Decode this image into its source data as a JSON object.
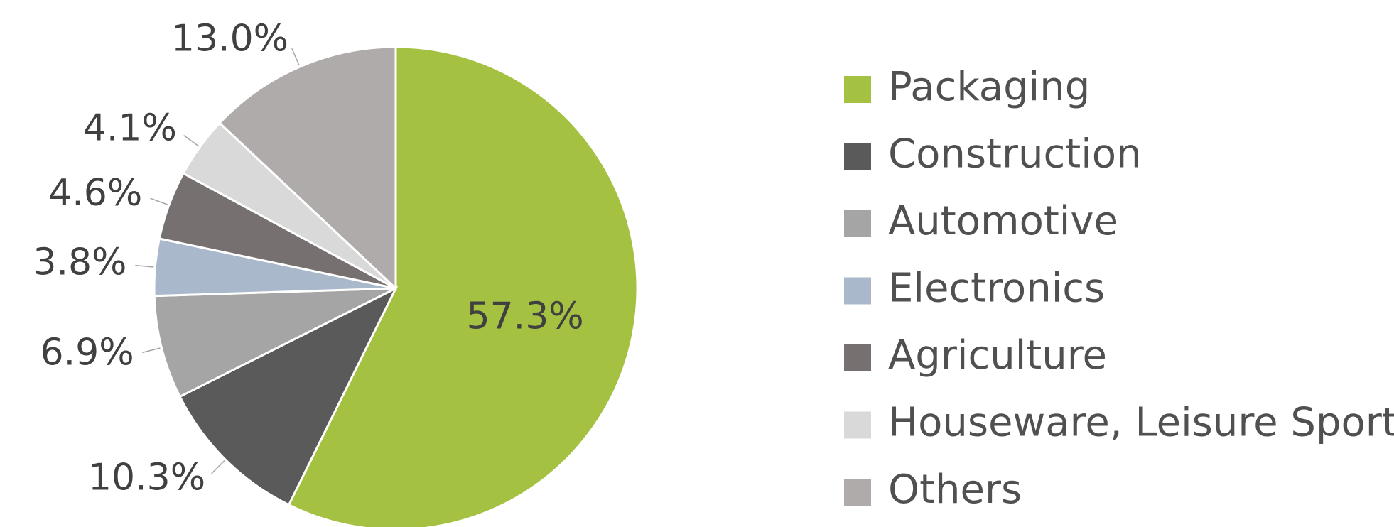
{
  "chart_data": {
    "type": "pie",
    "categories": [
      "Packaging",
      "Construction",
      "Automotive",
      "Electronics",
      "Agriculture",
      "Houseware, Leisure Sport",
      "Others"
    ],
    "values": [
      57.3,
      10.3,
      6.9,
      3.8,
      4.6,
      4.1,
      13.0
    ],
    "value_labels": [
      "57.3%",
      "10.3%",
      "6.9%",
      "3.8%",
      "4.6%",
      "4.1%",
      "13.0%"
    ],
    "colors": [
      "#a4c142",
      "#5a5a5a",
      "#a5a5a5",
      "#aab8cc",
      "#767170",
      "#d9d9d9",
      "#afabab"
    ],
    "legend": "right"
  }
}
